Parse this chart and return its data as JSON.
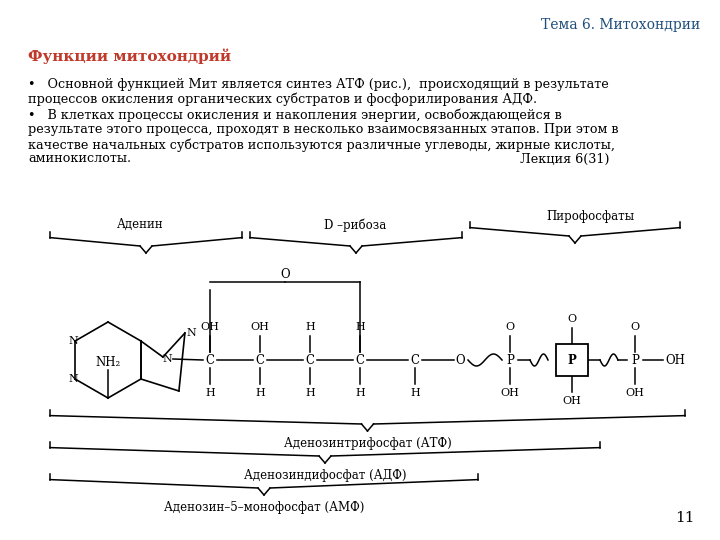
{
  "bg_color": "#ffffff",
  "title_text": "Тема 6. Митохондрии",
  "title_color": "#1F4E79",
  "heading_text": "Функции митохондрий",
  "heading_color": "#C0392B",
  "bullet1_line1": "•   Основной функцией Мит является синтез АТФ (рис.),  происходящий в результате",
  "bullet1_line2": "процессов окисления органических субстратов и фосфорилирования АДФ.",
  "bullet2_line1": "•   В клетках процессы окисления и накопления энергии, освобождающейся в",
  "bullet2_line2": "результате этого процесса, проходят в несколько взаимосвязанных этапов. При этом в",
  "bullet2_line3": "качестве начальных субстратов используются различные углеводы, жирные кислоты,",
  "bullet2_line4": "аминокислоты.",
  "lecture_note": "Лекция 6(31)",
  "page_number": "11",
  "text_color": "#000000",
  "struct_color": "#000000",
  "body_fontsize": 9.2
}
